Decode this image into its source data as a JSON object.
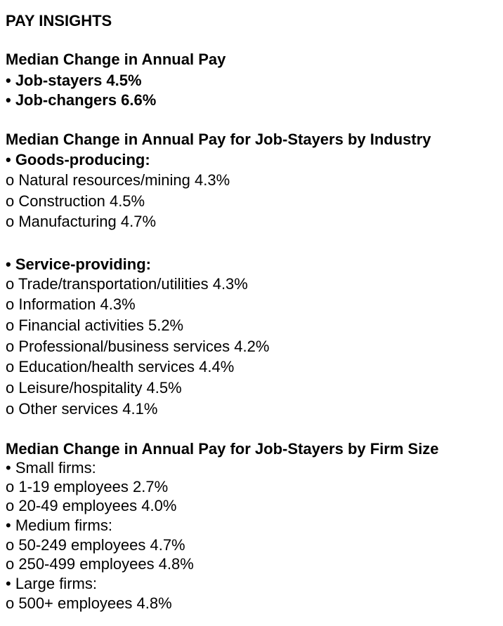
{
  "title": "PAY INSIGHTS",
  "sections": [
    {
      "heading": "Median Change in Annual Pay",
      "items": [
        "• Job-stayers 4.5%",
        "•  Job-changers 6.6%"
      ]
    },
    {
      "heading": "Median Change in Annual Pay for Job-Stayers by Industry",
      "items": [
        "• Goods-producing:",
        "o Natural resources/mining 4.3%",
        "o Construction 4.5%",
        "o Manufacturing 4.7%",
        "• Service-providing:",
        "o Trade/transportation/utilities 4.3%",
        "o Information 4.3%",
        "o Financial activities 5.2%",
        "o Professional/business services 4.2%",
        "o Education/health services 4.4%",
        "o Leisure/hospitality 4.5%",
        "o Other services 4.1%"
      ]
    },
    {
      "heading": "Median Change in Annual Pay for Job-Stayers by Firm Size",
      "items": [
        "• Small firms:",
        "o 1-19 employees 2.7%",
        "o 20-49 employees 4.0%",
        "• Medium firms:",
        "o 50-249 employees 4.7%",
        "o 250-499 employees 4.8%",
        "• Large firms:",
        "o 500+ employees 4.8%"
      ]
    }
  ]
}
